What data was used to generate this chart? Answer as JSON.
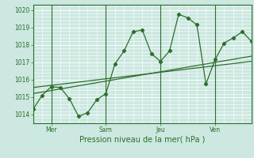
{
  "title": "",
  "xlabel": "Pression niveau de la mer( hPa )",
  "bg_color": "#cce8e0",
  "grid_color": "#ffffff",
  "line_color": "#2d6e2d",
  "ylim": [
    1013.5,
    1020.3
  ],
  "xlim": [
    0,
    96
  ],
  "yticks": [
    1014,
    1015,
    1016,
    1017,
    1018,
    1019,
    1020
  ],
  "day_ticks": [
    8,
    32,
    56,
    80
  ],
  "day_labels": [
    "Mer",
    "Sam",
    "Jeu",
    "Ven"
  ],
  "series1_x": [
    0,
    4,
    8,
    12,
    16,
    20,
    24,
    28,
    32,
    36,
    40,
    44,
    48,
    52,
    56,
    60,
    64,
    68,
    72,
    76,
    80,
    84,
    88,
    92,
    96
  ],
  "series1_y": [
    1014.3,
    1015.1,
    1015.6,
    1015.55,
    1014.9,
    1013.9,
    1014.1,
    1014.85,
    1015.2,
    1016.9,
    1017.65,
    1018.75,
    1018.85,
    1017.5,
    1017.05,
    1017.65,
    1019.75,
    1019.55,
    1019.15,
    1015.75,
    1017.15,
    1018.1,
    1018.4,
    1018.75,
    1018.2
  ],
  "series2_x": [
    0,
    96
  ],
  "series2_y": [
    1015.2,
    1017.35
  ],
  "series3_x": [
    0,
    96
  ],
  "series3_y": [
    1015.55,
    1017.05
  ]
}
